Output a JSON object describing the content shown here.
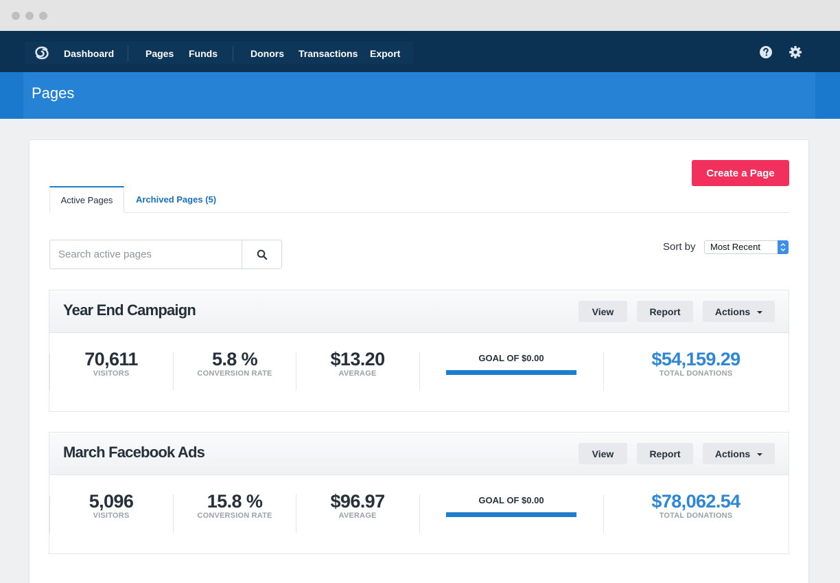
{
  "colors": {
    "nav_bg": "#0b3153",
    "header_band": "#2682d4",
    "accent": "#1f7dd0",
    "create_button": "#f1305e",
    "total_donations": "#2e86d6"
  },
  "nav": {
    "logo_icon": "spiral-logo-icon",
    "items": [
      "Dashboard",
      "Pages",
      "Funds",
      "Donors",
      "Transactions",
      "Export"
    ],
    "help_icon": "question-circle-icon",
    "settings_icon": "gear-icon"
  },
  "header": {
    "title": "Pages"
  },
  "toolbar": {
    "create_label": "Create a Page"
  },
  "tabs": {
    "active": "Active Pages",
    "archived": "Archived Pages (5)"
  },
  "search": {
    "placeholder": "Search active pages",
    "button_icon": "search-icon"
  },
  "sort": {
    "label": "Sort by",
    "value": "Most Recent"
  },
  "buttons": {
    "view": "View",
    "report": "Report",
    "actions": "Actions"
  },
  "campaigns": [
    {
      "title": "Year End Campaign",
      "visitors": "70,611",
      "visitors_label": "VISITORS",
      "conversion": "5.8 %",
      "conversion_label": "CONVERSION RATE",
      "average": "$13.20",
      "average_label": "AVERAGE",
      "goal": "GOAL OF $0.00",
      "goal_progress": 1.0,
      "total": "$54,159.29",
      "total_label": "TOTAL DONATIONS"
    },
    {
      "title": "March Facebook Ads",
      "visitors": "5,096",
      "visitors_label": "VISITORS",
      "conversion": "15.8 %",
      "conversion_label": "CONVERSION RATE",
      "average": "$96.97",
      "average_label": "AVERAGE",
      "goal": "GOAL OF $0.00",
      "goal_progress": 1.0,
      "total": "$78,062.54",
      "total_label": "TOTAL DONATIONS"
    }
  ]
}
